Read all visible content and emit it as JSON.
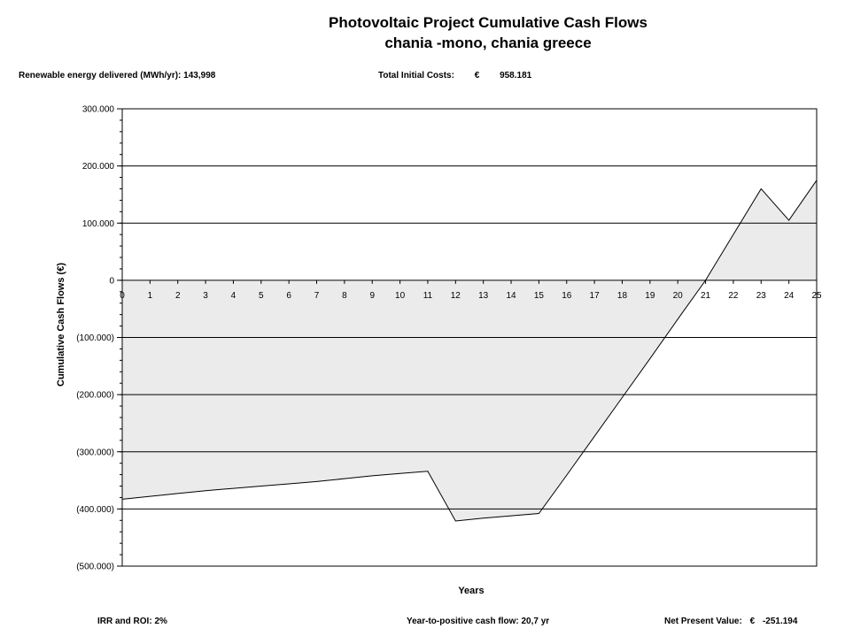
{
  "chart_data": {
    "type": "area",
    "title": "Photovoltaic Project Cumulative Cash Flows",
    "subtitle": "chania -mono, chania greece",
    "xlabel": "Years",
    "ylabel": "Cumulative Cash Flows (€)",
    "x": [
      0,
      1,
      2,
      3,
      4,
      5,
      6,
      7,
      8,
      9,
      10,
      11,
      12,
      13,
      14,
      15,
      16,
      17,
      18,
      19,
      20,
      21,
      22,
      23,
      24,
      25
    ],
    "values": [
      -383000,
      -378000,
      -373000,
      -368000,
      -364000,
      -360000,
      -356000,
      -352000,
      -347000,
      -342000,
      -338000,
      -334000,
      -421000,
      -416000,
      -412000,
      -408000,
      -341000,
      -273000,
      -205000,
      -137000,
      -68000,
      0,
      80000,
      160000,
      105000,
      175000
    ],
    "ylim": [
      -500000,
      300000
    ],
    "yticks": [
      300000,
      200000,
      100000,
      0,
      -100000,
      -200000,
      -300000,
      -400000,
      -500000
    ],
    "ytick_labels": [
      "300.000",
      "200.000",
      "100.000",
      "0",
      "(100.000)",
      "(200.000)",
      "(300.000)",
      "(400.000)",
      "(500.000)"
    ],
    "grid": "horizontal major gridlines",
    "legend": "none",
    "fill_color": "#ebebeb"
  },
  "header": {
    "title": "Photovoltaic Project Cumulative Cash Flows",
    "subtitle": "chania -mono, chania greece",
    "energy_label": "Renewable energy delivered (MWh/yr):",
    "energy_value": "143,998",
    "costs_label": "Total Initial Costs:",
    "costs_currency": "€",
    "costs_value": "958.181"
  },
  "footer": {
    "irr_label": "IRR and ROI:",
    "irr_value": "2%",
    "payback_label": "Year-to-positive cash flow:",
    "payback_value": "20,7 yr",
    "npv_label": "Net Present Value:",
    "npv_currency": "€",
    "npv_value": "-251.194"
  }
}
